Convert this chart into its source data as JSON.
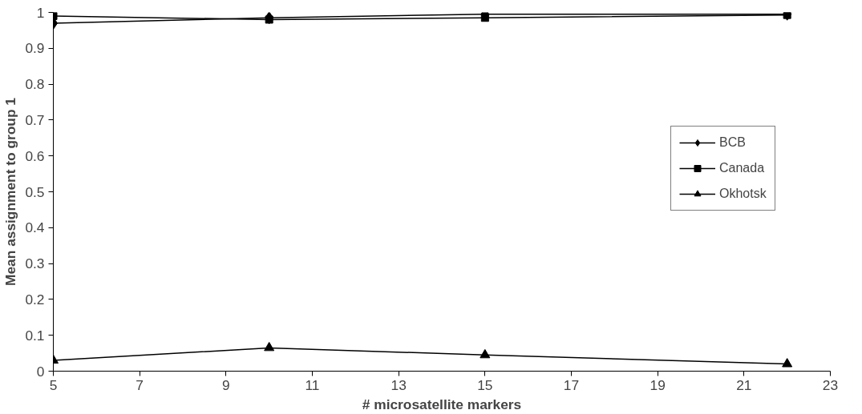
{
  "chart_data": {
    "type": "line",
    "xlabel": "# microsatellite markers",
    "ylabel": "Mean assignment to group 1",
    "x": [
      5,
      10,
      15,
      22
    ],
    "series": [
      {
        "name": "BCB",
        "color": "#000000",
        "marker": "diamond",
        "values": [
          0.97,
          0.985,
          0.995,
          0.995
        ]
      },
      {
        "name": "Canada",
        "color": "#000000",
        "marker": "square",
        "values": [
          0.99,
          0.98,
          0.985,
          0.993
        ]
      },
      {
        "name": "Okhotsk",
        "color": "#000000",
        "marker": "triangle",
        "values": [
          0.03,
          0.065,
          0.045,
          0.02
        ]
      }
    ],
    "xlim": [
      5,
      23
    ],
    "xticks": [
      5,
      7,
      9,
      11,
      13,
      15,
      17,
      19,
      21,
      23
    ],
    "ylim": [
      0,
      1
    ],
    "yticks": [
      0,
      0.1,
      0.2,
      0.3,
      0.4,
      0.5,
      0.6,
      0.7,
      0.8,
      0.9,
      1
    ],
    "grid": false,
    "legend": "right",
    "line_style": "solid"
  }
}
